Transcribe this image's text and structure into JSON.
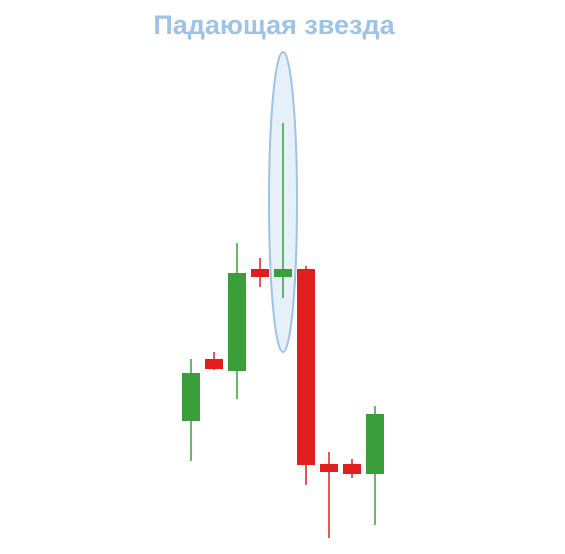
{
  "chart_data": {
    "type": "candlestick",
    "title": "Падающая звезда",
    "open": [
      133,
      195,
      183,
      285,
      277,
      285,
      90,
      90,
      80
    ],
    "close": [
      181,
      185,
      281,
      277,
      285,
      89,
      82,
      80,
      140
    ],
    "high": [
      195,
      202,
      311,
      296,
      431,
      288,
      102,
      95,
      148
    ],
    "low": [
      93,
      184,
      155,
      267,
      256,
      69,
      16,
      76,
      29
    ],
    "up_color": "#3a9e3a",
    "down_color": "#e01e1e",
    "ylim": [
      0,
      554
    ]
  }
}
